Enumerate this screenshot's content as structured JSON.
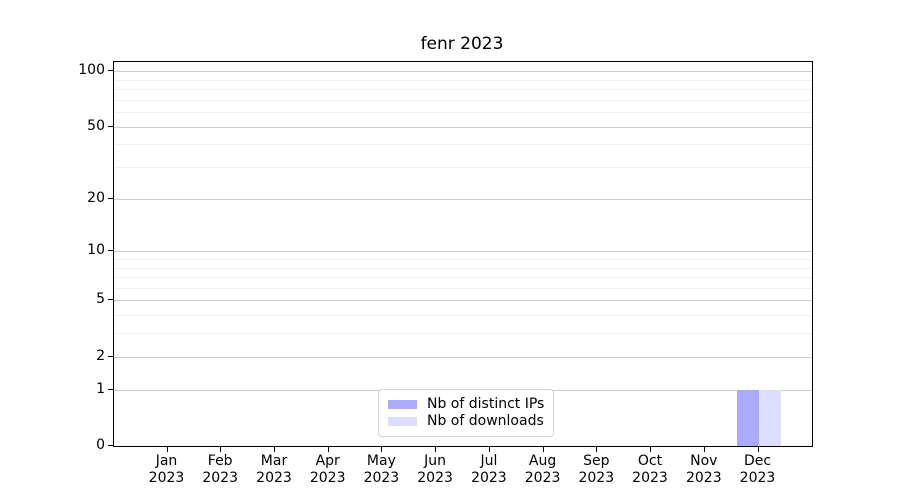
{
  "chart_data": {
    "type": "bar",
    "title": "fenr 2023",
    "categories": [
      "Jan 2023",
      "Feb 2023",
      "Mar 2023",
      "Apr 2023",
      "May 2023",
      "Jun 2023",
      "Jul 2023",
      "Aug 2023",
      "Sep 2023",
      "Oct 2023",
      "Nov 2023",
      "Dec 2023"
    ],
    "series": [
      {
        "name": "Nb of distinct IPs",
        "color": "#aaaaff",
        "values": [
          0,
          0,
          0,
          0,
          0,
          0,
          0,
          0,
          0,
          0,
          0,
          1
        ]
      },
      {
        "name": "Nb of downloads",
        "color": "#ddddff",
        "values": [
          0,
          0,
          0,
          0,
          0,
          0,
          0,
          0,
          0,
          0,
          0,
          1
        ]
      }
    ],
    "yscale": "log1p",
    "ylim": [
      0,
      100
    ],
    "y_major_ticks": [
      0,
      1,
      2,
      5,
      10,
      20,
      50,
      100
    ],
    "y_minor_gridlines": [
      3,
      4,
      6,
      7,
      8,
      9,
      30,
      40,
      60,
      70,
      80,
      90
    ],
    "grid": "horizontal",
    "legend": {
      "position": "lower center"
    }
  },
  "colors": {
    "major_grid": "#cccccc",
    "minor_grid": "#f0f0f0",
    "axis": "#000000",
    "text": "#000000",
    "legend_border": "#d5d5d5",
    "legend_bg": "#ffffff"
  }
}
